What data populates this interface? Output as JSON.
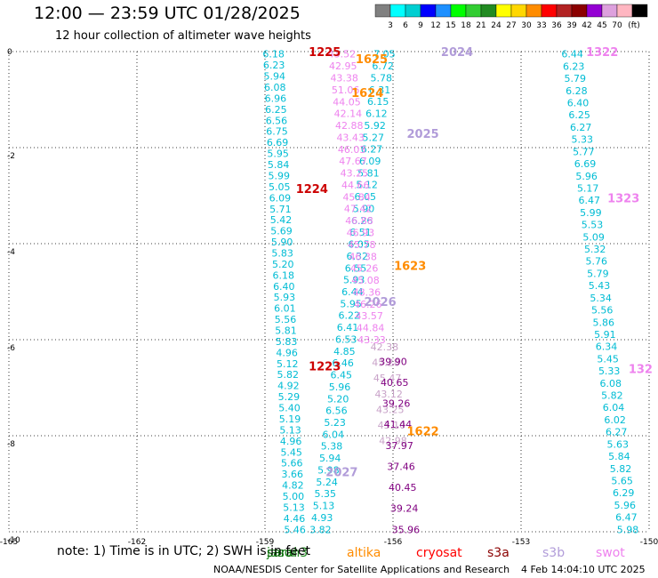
{
  "header": {
    "title": "12:00 — 23:59 UTC 01/28/2025",
    "subtitle": "12 hour collection of altimeter wave heights"
  },
  "footer": {
    "note": "note: 1) Time is in UTC; 2) SWH is in feet",
    "credit": "NOAA/NESDIS Center for Satellite Applications and Research",
    "timestamp": "4 Feb 14:04:10 UTC 2025"
  },
  "colorbar": {
    "unit": "(ft)",
    "ticks": [
      "3",
      "6",
      "9",
      "12",
      "15",
      "18",
      "21",
      "24",
      "27",
      "30",
      "33",
      "36",
      "39",
      "42",
      "45",
      "70"
    ],
    "colors": [
      "#808080",
      "#00ffff",
      "#00ced1",
      "#0000ff",
      "#1e90ff",
      "#00ff00",
      "#32cd32",
      "#228b22",
      "#ffff00",
      "#ffd700",
      "#ff8c00",
      "#ff0000",
      "#b22222",
      "#8b0000",
      "#9400d3",
      "#dda0dd",
      "#ffb6c1",
      "#000000"
    ]
  },
  "chart_data": {
    "type": "scatter",
    "xlim": [
      -165,
      -150
    ],
    "ylim": [
      -10,
      0
    ],
    "x_ticks": [
      "-165",
      "-162",
      "-159",
      "-156",
      "-153",
      "-150"
    ],
    "y_ticks": [
      "0",
      "-2",
      "-4",
      "-6",
      "-8",
      "-10"
    ],
    "grid": true,
    "legend_position": "bottom",
    "legend": [
      {
        "name": "jason3",
        "color": "#228b22"
      },
      {
        "name": "saral",
        "color": "#006400"
      },
      {
        "name": "altika",
        "color": "#ff8c00"
      },
      {
        "name": "cryosat",
        "color": "#ff0000"
      },
      {
        "name": "s3a",
        "color": "#8b0000"
      },
      {
        "name": "s3b",
        "color": "#b19cd9"
      },
      {
        "name": "swot",
        "color": "#ee82ee"
      }
    ],
    "time_labels": [
      {
        "text": "1225",
        "x": -157.6,
        "y": 0.0,
        "color": "#cc0000"
      },
      {
        "text": "1625",
        "x": -156.5,
        "y": -0.15,
        "color": "#ff8c00"
      },
      {
        "text": "1624",
        "x": -156.6,
        "y": -0.85,
        "color": "#ff8c00"
      },
      {
        "text": "2024",
        "x": -154.5,
        "y": 0.0,
        "color": "#b19cd9"
      },
      {
        "text": "2025",
        "x": -155.3,
        "y": -1.7,
        "color": "#b19cd9"
      },
      {
        "text": "1224",
        "x": -157.9,
        "y": -2.85,
        "color": "#cc0000"
      },
      {
        "text": "1623",
        "x": -155.6,
        "y": -4.45,
        "color": "#ff8c00"
      },
      {
        "text": "2026",
        "x": -156.3,
        "y": -5.2,
        "color": "#b19cd9"
      },
      {
        "text": "1223",
        "x": -157.6,
        "y": -6.55,
        "color": "#cc0000"
      },
      {
        "text": "1622",
        "x": -155.3,
        "y": -7.9,
        "color": "#ff8c00"
      },
      {
        "text": "2027",
        "x": -157.2,
        "y": -8.75,
        "color": "#b19cd9"
      },
      {
        "text": "1322",
        "x": -151.1,
        "y": 0.0,
        "color": "#ee82ee"
      },
      {
        "text": "1323",
        "x": -150.6,
        "y": -3.05,
        "color": "#ee82ee"
      },
      {
        "text": "132",
        "x": -150.2,
        "y": -6.6,
        "color": "#ee82ee"
      }
    ],
    "series": [
      {
        "name": "jason3",
        "color": "#00bcd4",
        "x_start": -158.8,
        "x_end": -158.3,
        "values": [
          "6.18",
          "6.23",
          "5.94",
          "6.08",
          "6.96",
          "6.25",
          "6.56",
          "6.75",
          "6.69",
          "5.95",
          "5.84",
          "5.99",
          "5.05",
          "6.09",
          "5.71",
          "5.42",
          "5.69",
          "5.90",
          "5.83",
          "5.20",
          "6.18",
          "6.40",
          "5.93",
          "6.01",
          "5.56",
          "5.81",
          "5.83",
          "4.96",
          "5.12",
          "5.82",
          "4.92",
          "5.29",
          "5.40",
          "5.19",
          "5.13",
          "4.96",
          "5.45",
          "5.66",
          "3.66",
          "4.82",
          "5.00",
          "5.13",
          "4.46",
          "5.46"
        ]
      },
      {
        "name": "saral",
        "color": "#00bcd4",
        "x_start": -156.2,
        "x_end": -157.7,
        "values": [
          "7.05",
          "6.72",
          "5.78",
          "6.31",
          "6.15",
          "6.12",
          "5.92",
          "5.27",
          "6.27",
          "6.09",
          "5.81",
          "5.12",
          "6.05",
          "5.90",
          "6.26",
          "6.51",
          "6.05",
          "6.32",
          "6.55",
          "5.93",
          "6.44",
          "5.95",
          "6.22",
          "6.41",
          "6.53",
          "4.85",
          "6.46",
          "6.45",
          "5.96",
          "5.20",
          "6.56",
          "5.23",
          "6.04",
          "5.38",
          "5.94",
          "5.98",
          "5.24",
          "5.35",
          "5.13",
          "4.93",
          "3.82"
        ]
      },
      {
        "name": "swot",
        "color": "#ee82ee",
        "x_start": -157.2,
        "x_end": -156.5,
        "values": [
          "43.52",
          "42.95",
          "43.38",
          "51.06",
          "44.05",
          "42.14",
          "42.88",
          "43.43",
          "46.03",
          "47.67",
          "43.25",
          "44.66",
          "45.84",
          "47.42",
          "46.88",
          "46.93",
          "45.78",
          "46.38",
          "45.26",
          "45.08",
          "48.36",
          "46.26",
          "43.57",
          "44.84",
          "43.33"
        ]
      },
      {
        "name": "s3b",
        "color": "#c8a2c8",
        "x_start": -156.2,
        "x_end": -156.0,
        "values": [
          "42.38",
          "45.28",
          "45.47",
          "43.12",
          "43.25",
          "43.10",
          "42.98"
        ]
      },
      {
        "name": "s3a",
        "color": "#800080",
        "x_start": -156.0,
        "x_end": -155.7,
        "values": [
          "39.90",
          "40.65",
          "39.26",
          "41.44",
          "37.97",
          "37.46",
          "40.45",
          "39.24",
          "35.96"
        ]
      },
      {
        "name": "cryosat",
        "color": "#00bcd4",
        "x_start": -151.8,
        "x_end": -150.5,
        "values": [
          "6.44",
          "6.23",
          "5.79",
          "6.28",
          "6.40",
          "6.25",
          "6.27",
          "5.33",
          "5.77",
          "6.69",
          "5.96",
          "5.17",
          "6.47",
          "5.99",
          "5.53",
          "5.09",
          "5.32",
          "5.76",
          "5.79",
          "5.43",
          "5.34",
          "5.56",
          "5.86",
          "5.91",
          "6.34",
          "5.45",
          "5.33",
          "6.08",
          "5.82",
          "6.04",
          "6.02",
          "6.27",
          "5.63",
          "5.84",
          "5.82",
          "5.65",
          "6.29",
          "5.96",
          "6.47",
          "5.98"
        ]
      }
    ]
  }
}
